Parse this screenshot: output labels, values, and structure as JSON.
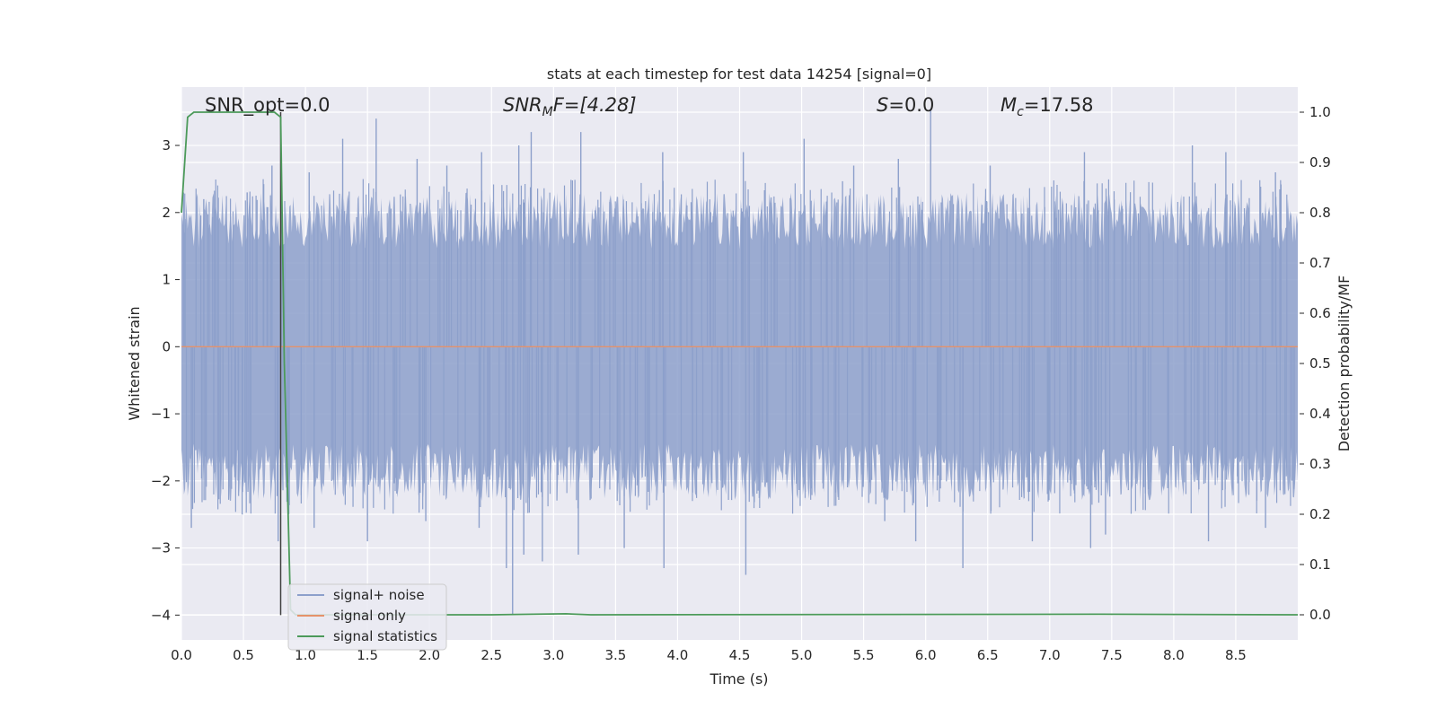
{
  "chart_data": {
    "type": "line",
    "title": "stats at each timestep for test data 14254 [signal=0]",
    "xlabel": "Time (s)",
    "ylabel": "Whitened strain",
    "y2label": "Detection probability/MF",
    "xlim": [
      0.0,
      9.0
    ],
    "ylim": [
      -4.37,
      3.87
    ],
    "y2lim": [
      -0.05,
      1.05
    ],
    "xticks": [
      "0.0",
      "0.5",
      "1.0",
      "1.5",
      "2.0",
      "2.5",
      "3.0",
      "3.5",
      "4.0",
      "4.5",
      "5.0",
      "5.5",
      "6.0",
      "6.5",
      "7.0",
      "7.5",
      "8.0",
      "8.5"
    ],
    "yticks": [
      "3",
      "2",
      "1",
      "0",
      "−1",
      "−2",
      "−3",
      "−4"
    ],
    "y2ticks": [
      "1.0",
      "0.9",
      "0.8",
      "0.7",
      "0.6",
      "0.5",
      "0.4",
      "0.3",
      "0.2",
      "0.1",
      "0.0"
    ],
    "grid": true,
    "legend_position": "lower-left",
    "annotations": {
      "snr_opt": "SNR_opt=0.0",
      "snr_mf_main": "SNR",
      "snr_mf_sub": "M",
      "snr_mf_rest": "F=[4.28]",
      "s_main": "S",
      "s_rest": "=0.0",
      "mc_main": "M",
      "mc_sub": "c",
      "mc_rest": "=17.58"
    },
    "marker_line_x": 0.8,
    "series": [
      {
        "name": "signal+ noise",
        "color": "#8da0cb",
        "description_values": {
          "typical_range": [
            -2.0,
            2.0
          ],
          "peak_high": 3.55,
          "peak_low": -4.0
        },
        "spikes": [
          [
            0.18,
            2.2
          ],
          [
            0.53,
            2.3
          ],
          [
            0.73,
            2.7
          ],
          [
            1.03,
            2.6
          ],
          [
            1.3,
            3.1
          ],
          [
            1.57,
            3.4
          ],
          [
            1.9,
            2.8
          ],
          [
            2.14,
            2.7
          ],
          [
            2.42,
            2.9
          ],
          [
            2.72,
            3.0
          ],
          [
            2.82,
            3.2
          ],
          [
            3.22,
            3.2
          ],
          [
            3.88,
            2.9
          ],
          [
            4.53,
            2.9
          ],
          [
            5.02,
            3.1
          ],
          [
            5.42,
            2.7
          ],
          [
            5.78,
            2.8
          ],
          [
            6.04,
            3.55
          ],
          [
            6.52,
            2.7
          ],
          [
            7.28,
            2.9
          ],
          [
            8.15,
            3.0
          ],
          [
            8.42,
            2.9
          ],
          [
            8.82,
            2.6
          ],
          [
            0.08,
            -2.7
          ],
          [
            0.49,
            -2.5
          ],
          [
            0.78,
            -2.9
          ],
          [
            1.07,
            -2.7
          ],
          [
            1.5,
            -2.9
          ],
          [
            1.97,
            -2.6
          ],
          [
            2.4,
            -2.7
          ],
          [
            2.62,
            -3.3
          ],
          [
            2.67,
            -4.0
          ],
          [
            2.76,
            -3.1
          ],
          [
            2.91,
            -3.2
          ],
          [
            3.2,
            -3.1
          ],
          [
            3.57,
            -3.0
          ],
          [
            3.89,
            -3.3
          ],
          [
            4.55,
            -3.4
          ],
          [
            5.67,
            -2.6
          ],
          [
            5.92,
            -2.9
          ],
          [
            6.3,
            -3.3
          ],
          [
            6.86,
            -2.9
          ],
          [
            7.33,
            -3.0
          ],
          [
            7.45,
            -2.8
          ],
          [
            8.28,
            -2.9
          ],
          [
            8.74,
            -2.7
          ]
        ]
      },
      {
        "name": "signal only",
        "color": "#e5926b",
        "values_constant": 0.0
      },
      {
        "name": "signal statistics",
        "color": "#4c9a5a",
        "axis": "right",
        "x": [
          0.0,
          0.05,
          0.1,
          0.2,
          0.5,
          0.75,
          0.8,
          0.83,
          0.88,
          0.92,
          1.0,
          2.5,
          3.1,
          3.3,
          7.4,
          9.0
        ],
        "y": [
          0.8,
          0.99,
          1.0,
          1.0,
          1.0,
          1.0,
          0.99,
          0.5,
          0.01,
          0.0,
          0.0,
          0.0,
          0.002,
          0.0,
          0.001,
          0.0
        ]
      }
    ]
  }
}
